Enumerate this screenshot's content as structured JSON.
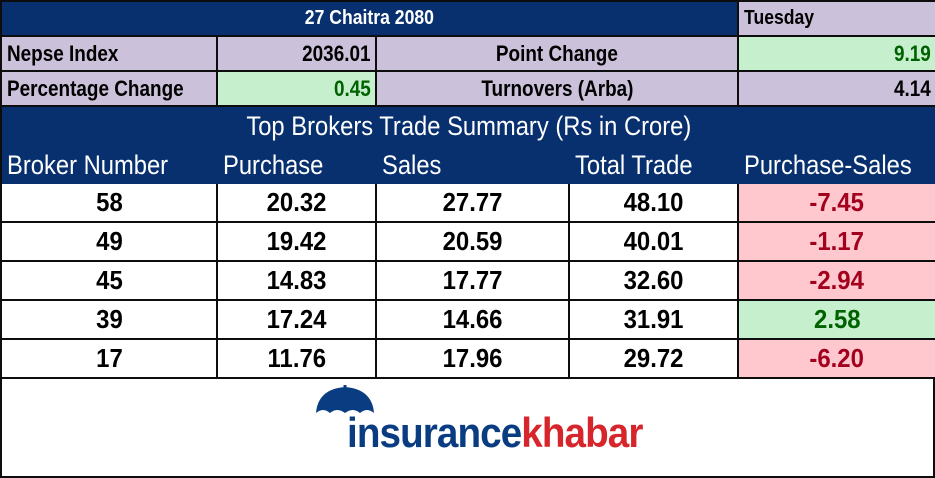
{
  "header": {
    "date": "27 Chaitra 2080",
    "day": "Tuesday"
  },
  "summary": {
    "nepse_label": "Nepse Index",
    "nepse_value": "2036.01",
    "point_change_label": "Point Change",
    "point_change_value": "9.19",
    "pct_change_label": "Percentage Change",
    "pct_change_value": "0.45",
    "turnover_label": "Turnovers (Arba)",
    "turnover_value": "4.14"
  },
  "table": {
    "title": "Top Brokers Trade Summary (Rs in Crore)",
    "columns": [
      "Broker Number",
      "Purchase",
      "Sales",
      "Total Trade",
      "Purchase-Sales"
    ],
    "rows": [
      {
        "broker": "58",
        "purchase": "20.32",
        "sales": "27.77",
        "total": "48.10",
        "diff": "-7.45",
        "diff_sign": "negative"
      },
      {
        "broker": "49",
        "purchase": "19.42",
        "sales": "20.59",
        "total": "40.01",
        "diff": "-1.17",
        "diff_sign": "negative"
      },
      {
        "broker": "45",
        "purchase": "14.83",
        "sales": "17.77",
        "total": "32.60",
        "diff": "-2.94",
        "diff_sign": "negative"
      },
      {
        "broker": "39",
        "purchase": "17.24",
        "sales": "14.66",
        "total": "31.91",
        "diff": "2.58",
        "diff_sign": "positive"
      },
      {
        "broker": "17",
        "purchase": "11.76",
        "sales": "17.96",
        "total": "29.72",
        "diff": "-6.20",
        "diff_sign": "negative"
      }
    ]
  },
  "logo": {
    "part1": "insurance",
    "part2": "khabar",
    "icon": "umbrella-icon"
  },
  "colors": {
    "navy": "#08306f",
    "lavender": "#ccc1da",
    "positive_bg": "#c6efce",
    "negative_bg": "#ffc7ce",
    "positive_text": "#006100",
    "negative_text": "#a3001d"
  }
}
